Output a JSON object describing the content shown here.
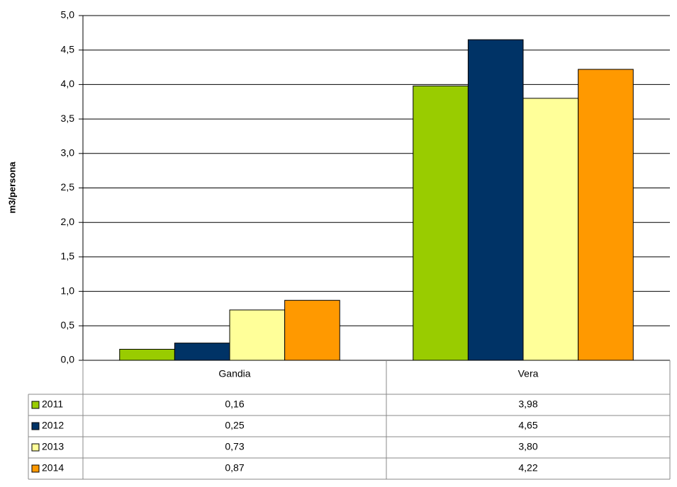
{
  "chart_data": {
    "type": "bar",
    "y_label": "m3/persona",
    "categories": [
      "Gandia",
      "Vera"
    ],
    "series": [
      {
        "name": "2011",
        "color": "#99cc00",
        "values": [
          0.16,
          3.98
        ],
        "value_labels": [
          "0,16",
          "3,98"
        ]
      },
      {
        "name": "2012",
        "color": "#003366",
        "values": [
          0.25,
          4.65
        ],
        "value_labels": [
          "0,25",
          "4,65"
        ]
      },
      {
        "name": "2013",
        "color": "#ffff99",
        "values": [
          0.73,
          3.8
        ],
        "value_labels": [
          "0,73",
          "3,80"
        ]
      },
      {
        "name": "2014",
        "color": "#ff9900",
        "values": [
          0.87,
          4.22
        ],
        "value_labels": [
          "0,87",
          "4,22"
        ]
      }
    ],
    "ylim": [
      0,
      5
    ],
    "yticks": [
      {
        "value": 0,
        "label": "0,0"
      },
      {
        "value": 0.5,
        "label": "0,5"
      },
      {
        "value": 1,
        "label": "1,0"
      },
      {
        "value": 1.5,
        "label": "1,5"
      },
      {
        "value": 2,
        "label": "2,0"
      },
      {
        "value": 2.5,
        "label": "2,5"
      },
      {
        "value": 3,
        "label": "3,0"
      },
      {
        "value": 3.5,
        "label": "3,5"
      },
      {
        "value": 4,
        "label": "4,0"
      },
      {
        "value": 4.5,
        "label": "4,5"
      },
      {
        "value": 5,
        "label": "5,0"
      }
    ],
    "grid": true
  }
}
